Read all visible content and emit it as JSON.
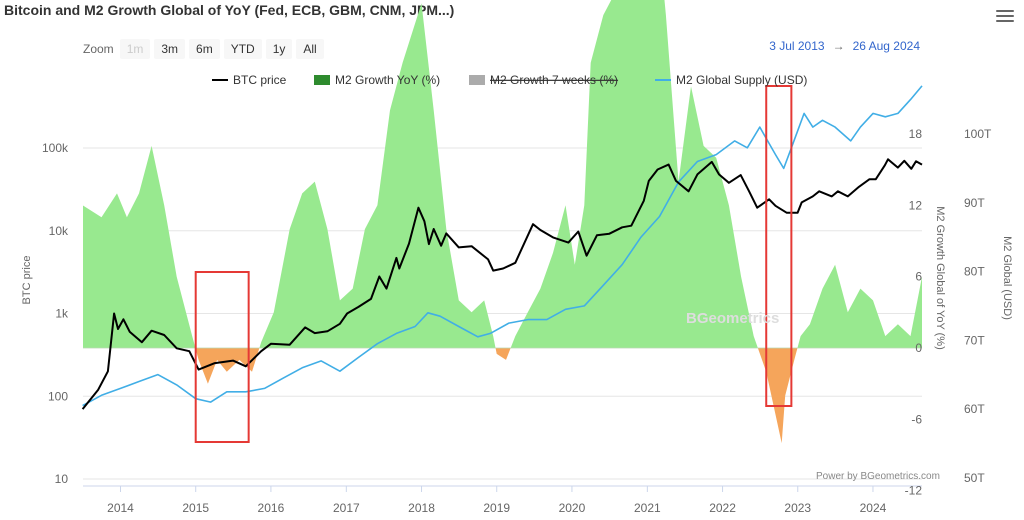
{
  "header": {
    "title": "Bitcoin and M2 Growth Global of YoY (Fed, ECB, GBM, CNM, JPM...)",
    "menu_icon": "hamburger-menu-icon"
  },
  "zoom": {
    "label": "Zoom",
    "buttons": [
      {
        "label": "1m",
        "enabled": false
      },
      {
        "label": "3m",
        "enabled": true
      },
      {
        "label": "6m",
        "enabled": true
      },
      {
        "label": "YTD",
        "enabled": true
      },
      {
        "label": "1y",
        "enabled": true
      },
      {
        "label": "All",
        "enabled": true
      }
    ]
  },
  "range": {
    "from": "3 Jul 2013",
    "arrow": "→",
    "to": "26 Aug 2024"
  },
  "legend": [
    {
      "label": "BTC price",
      "color": "#000000",
      "kind": "line",
      "hidden": false
    },
    {
      "label": "M2 Growth YoY (%)",
      "color": "#2e8b2e",
      "kind": "area",
      "hidden": false
    },
    {
      "label": "M2 Growth 7 weeks (%)",
      "color": "#888888",
      "kind": "area",
      "hidden": true
    },
    {
      "label": "M2 Global Supply (USD)",
      "color": "#41aee6",
      "kind": "line",
      "hidden": false
    }
  ],
  "watermark": "BGeometrics",
  "credits": "Power by BGeometrics.com",
  "chart_data": {
    "type": "line",
    "x_axis": {
      "type": "datetime",
      "range": [
        "2013-07-03",
        "2024-08-26"
      ],
      "tick_labels": [
        "2014",
        "2015",
        "2016",
        "2017",
        "2018",
        "2019",
        "2020",
        "2021",
        "2022",
        "2023",
        "2024"
      ]
    },
    "y_axes": [
      {
        "title": "BTC price",
        "scale": "log",
        "range": [
          10,
          300000
        ],
        "tick_labels": [
          "10",
          "100",
          "1k",
          "10k",
          "100k"
        ],
        "tick_values": [
          10,
          100,
          1000,
          10000,
          100000
        ]
      },
      {
        "title": "M2 Growth Global of YoY (%)",
        "scale": "linear",
        "range": [
          -12,
          18
        ],
        "tick_labels": [
          "-12",
          "-6",
          "0",
          "6",
          "12",
          "18"
        ],
        "tick_values": [
          -12,
          -6,
          0,
          6,
          12,
          18
        ]
      },
      {
        "title": "M2 Global (USD)",
        "scale": "linear",
        "range": [
          50,
          100
        ],
        "tick_labels": [
          "50T",
          "60T",
          "70T",
          "80T",
          "90T",
          "100T"
        ],
        "tick_values": [
          50,
          60,
          70,
          80,
          90,
          100
        ]
      }
    ],
    "series": [
      {
        "name": "BTC price",
        "axis": 0,
        "color": "#000000",
        "type": "line",
        "points": [
          [
            "2013-07-01",
            70
          ],
          [
            "2013-09-15",
            120
          ],
          [
            "2013-11-01",
            200
          ],
          [
            "2013-12-01",
            1000
          ],
          [
            "2013-12-20",
            650
          ],
          [
            "2014-01-15",
            850
          ],
          [
            "2014-02-15",
            600
          ],
          [
            "2014-04-15",
            450
          ],
          [
            "2014-06-01",
            620
          ],
          [
            "2014-08-01",
            550
          ],
          [
            "2014-10-01",
            380
          ],
          [
            "2014-12-01",
            350
          ],
          [
            "2015-01-15",
            210
          ],
          [
            "2015-04-01",
            250
          ],
          [
            "2015-07-01",
            270
          ],
          [
            "2015-09-01",
            230
          ],
          [
            "2015-11-15",
            350
          ],
          [
            "2016-01-01",
            430
          ],
          [
            "2016-04-01",
            420
          ],
          [
            "2016-06-15",
            680
          ],
          [
            "2016-08-01",
            580
          ],
          [
            "2016-10-01",
            610
          ],
          [
            "2016-12-01",
            750
          ],
          [
            "2017-01-05",
            1000
          ],
          [
            "2017-03-01",
            1200
          ],
          [
            "2017-05-01",
            1500
          ],
          [
            "2017-06-10",
            2800
          ],
          [
            "2017-07-15",
            2000
          ],
          [
            "2017-09-01",
            4700
          ],
          [
            "2017-09-15",
            3500
          ],
          [
            "2017-11-01",
            7000
          ],
          [
            "2017-12-17",
            19000
          ],
          [
            "2018-01-15",
            13000
          ],
          [
            "2018-02-06",
            6900
          ],
          [
            "2018-03-01",
            10500
          ],
          [
            "2018-04-06",
            6600
          ],
          [
            "2018-05-01",
            9300
          ],
          [
            "2018-07-01",
            6300
          ],
          [
            "2018-09-01",
            6500
          ],
          [
            "2018-11-20",
            4500
          ],
          [
            "2018-12-15",
            3300
          ],
          [
            "2019-02-01",
            3500
          ],
          [
            "2019-04-01",
            4100
          ],
          [
            "2019-06-26",
            12000
          ],
          [
            "2019-08-01",
            10200
          ],
          [
            "2019-10-01",
            8300
          ],
          [
            "2019-12-15",
            7200
          ],
          [
            "2020-02-01",
            9800
          ],
          [
            "2020-03-12",
            5000
          ],
          [
            "2020-05-01",
            8800
          ],
          [
            "2020-07-01",
            9200
          ],
          [
            "2020-09-01",
            11000
          ],
          [
            "2020-10-15",
            11500
          ],
          [
            "2020-12-15",
            23000
          ],
          [
            "2021-01-08",
            40000
          ],
          [
            "2021-02-20",
            55000
          ],
          [
            "2021-04-14",
            63000
          ],
          [
            "2021-05-20",
            40000
          ],
          [
            "2021-07-20",
            30000
          ],
          [
            "2021-09-01",
            48000
          ],
          [
            "2021-11-10",
            68000
          ],
          [
            "2021-12-15",
            48000
          ],
          [
            "2022-02-01",
            38000
          ],
          [
            "2022-03-30",
            47000
          ],
          [
            "2022-05-10",
            30000
          ],
          [
            "2022-06-18",
            19000
          ],
          [
            "2022-08-15",
            24000
          ],
          [
            "2022-09-15",
            20000
          ],
          [
            "2022-11-09",
            16500
          ],
          [
            "2022-12-31",
            16500
          ],
          [
            "2023-01-20",
            22000
          ],
          [
            "2023-03-15",
            26000
          ],
          [
            "2023-04-15",
            30000
          ],
          [
            "2023-06-15",
            26000
          ],
          [
            "2023-07-15",
            30000
          ],
          [
            "2023-09-01",
            26000
          ],
          [
            "2023-10-25",
            34000
          ],
          [
            "2023-12-15",
            42000
          ],
          [
            "2024-01-15",
            42000
          ],
          [
            "2024-02-28",
            62000
          ],
          [
            "2024-03-14",
            73000
          ],
          [
            "2024-05-01",
            58000
          ],
          [
            "2024-06-01",
            70000
          ],
          [
            "2024-07-05",
            56000
          ],
          [
            "2024-07-28",
            69000
          ],
          [
            "2024-08-26",
            63000
          ]
        ]
      },
      {
        "name": "M2 Growth YoY (%)",
        "axis": 1,
        "color": "#98e98f",
        "negative_color": "#f5a55b",
        "type": "area",
        "points": [
          [
            "2013-07-01",
            12
          ],
          [
            "2013-10-01",
            11
          ],
          [
            "2013-12-15",
            13
          ],
          [
            "2014-02-01",
            11
          ],
          [
            "2014-04-01",
            13
          ],
          [
            "2014-06-01",
            17
          ],
          [
            "2014-08-01",
            12
          ],
          [
            "2014-10-01",
            6
          ],
          [
            "2014-12-15",
            1
          ],
          [
            "2015-01-15",
            -1
          ],
          [
            "2015-03-01",
            -3
          ],
          [
            "2015-04-15",
            -1
          ],
          [
            "2015-06-01",
            -2
          ],
          [
            "2015-08-01",
            -1
          ],
          [
            "2015-10-01",
            -2
          ],
          [
            "2015-11-15",
            0.5
          ],
          [
            "2016-01-15",
            3
          ],
          [
            "2016-04-01",
            10
          ],
          [
            "2016-06-01",
            13
          ],
          [
            "2016-08-01",
            14
          ],
          [
            "2016-10-01",
            10
          ],
          [
            "2016-12-01",
            4
          ],
          [
            "2017-02-01",
            5
          ],
          [
            "2017-04-01",
            10
          ],
          [
            "2017-06-01",
            12
          ],
          [
            "2017-08-01",
            20
          ],
          [
            "2017-10-01",
            24
          ],
          [
            "2018-01-01",
            29
          ],
          [
            "2018-03-01",
            20
          ],
          [
            "2018-05-01",
            10
          ],
          [
            "2018-07-01",
            4
          ],
          [
            "2018-09-01",
            3
          ],
          [
            "2018-11-01",
            4
          ],
          [
            "2018-12-15",
            1
          ],
          [
            "2019-01-01",
            -0.5
          ],
          [
            "2019-02-15",
            -1
          ],
          [
            "2019-04-01",
            1
          ],
          [
            "2019-06-01",
            3
          ],
          [
            "2019-08-01",
            5
          ],
          [
            "2019-10-01",
            8
          ],
          [
            "2019-12-01",
            12
          ],
          [
            "2020-01-15",
            7
          ],
          [
            "2020-03-01",
            12
          ],
          [
            "2020-04-01",
            24
          ],
          [
            "2020-06-01",
            28
          ],
          [
            "2020-08-01",
            30
          ],
          [
            "2020-11-01",
            34
          ],
          [
            "2021-01-15",
            42
          ],
          [
            "2021-04-01",
            28
          ],
          [
            "2021-06-01",
            14
          ],
          [
            "2021-08-01",
            22
          ],
          [
            "2021-10-01",
            17
          ],
          [
            "2021-12-01",
            16
          ],
          [
            "2022-02-01",
            12
          ],
          [
            "2022-04-01",
            6
          ],
          [
            "2022-06-01",
            1
          ],
          [
            "2022-08-01",
            -2
          ],
          [
            "2022-10-15",
            -8
          ],
          [
            "2022-11-01",
            -4
          ],
          [
            "2022-12-15",
            -1
          ],
          [
            "2023-01-15",
            1
          ],
          [
            "2023-03-01",
            2
          ],
          [
            "2023-05-01",
            5
          ],
          [
            "2023-07-01",
            7
          ],
          [
            "2023-09-01",
            3
          ],
          [
            "2023-11-01",
            5
          ],
          [
            "2024-01-01",
            4
          ],
          [
            "2024-03-01",
            1
          ],
          [
            "2024-05-01",
            2
          ],
          [
            "2024-07-01",
            1
          ],
          [
            "2024-08-26",
            6
          ]
        ]
      },
      {
        "name": "M2 Global Supply (USD)",
        "axis": 2,
        "color": "#41aee6",
        "type": "line",
        "points": [
          [
            "2013-07-01",
            60.5
          ],
          [
            "2013-10-01",
            62
          ],
          [
            "2014-01-01",
            63
          ],
          [
            "2014-04-01",
            64
          ],
          [
            "2014-07-01",
            65
          ],
          [
            "2014-10-01",
            63.5
          ],
          [
            "2015-01-01",
            61.5
          ],
          [
            "2015-03-15",
            61
          ],
          [
            "2015-06-01",
            62.5
          ],
          [
            "2015-09-01",
            62.5
          ],
          [
            "2015-12-01",
            63
          ],
          [
            "2016-03-01",
            64.5
          ],
          [
            "2016-06-01",
            66
          ],
          [
            "2016-09-01",
            67
          ],
          [
            "2016-12-01",
            65.5
          ],
          [
            "2017-03-01",
            67.5
          ],
          [
            "2017-06-01",
            69.5
          ],
          [
            "2017-09-01",
            71
          ],
          [
            "2017-12-01",
            72
          ],
          [
            "2018-02-01",
            74
          ],
          [
            "2018-04-01",
            73.5
          ],
          [
            "2018-07-01",
            72
          ],
          [
            "2018-10-01",
            70.5
          ],
          [
            "2018-12-01",
            71
          ],
          [
            "2019-03-01",
            72.5
          ],
          [
            "2019-06-01",
            73
          ],
          [
            "2019-09-01",
            73
          ],
          [
            "2019-12-01",
            74.5
          ],
          [
            "2020-03-01",
            75
          ],
          [
            "2020-06-01",
            78
          ],
          [
            "2020-09-01",
            81
          ],
          [
            "2020-12-01",
            85
          ],
          [
            "2021-03-01",
            88
          ],
          [
            "2021-06-01",
            93
          ],
          [
            "2021-09-01",
            96
          ],
          [
            "2021-12-01",
            97
          ],
          [
            "2022-03-01",
            99
          ],
          [
            "2022-05-01",
            98
          ],
          [
            "2022-07-01",
            101
          ],
          [
            "2022-09-15",
            97
          ],
          [
            "2022-10-25",
            95
          ],
          [
            "2022-12-01",
            98
          ],
          [
            "2023-02-01",
            103
          ],
          [
            "2023-03-15",
            101
          ],
          [
            "2023-05-01",
            102
          ],
          [
            "2023-07-01",
            101
          ],
          [
            "2023-09-15",
            99
          ],
          [
            "2023-11-01",
            101
          ],
          [
            "2024-01-01",
            103
          ],
          [
            "2024-03-01",
            102.5
          ],
          [
            "2024-05-01",
            103
          ],
          [
            "2024-07-01",
            105
          ],
          [
            "2024-08-26",
            107
          ]
        ]
      }
    ],
    "highlight_boxes": [
      {
        "from": "2015-01-01",
        "to": "2015-09-15",
        "color": "#e53935"
      },
      {
        "from": "2022-08-01",
        "to": "2022-12-01",
        "color": "#e53935"
      }
    ]
  }
}
